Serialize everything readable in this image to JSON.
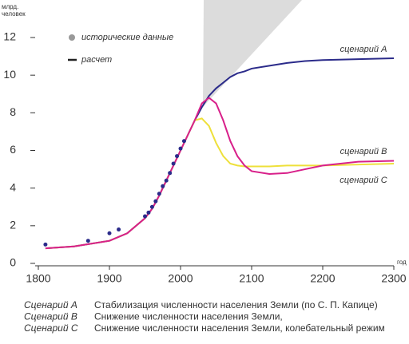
{
  "chart_data": {
    "type": "line",
    "ylabel": [
      "млрд.",
      "человек"
    ],
    "xlabel": "год",
    "xlim": [
      1800,
      2300
    ],
    "ylim": [
      0,
      12
    ],
    "xticks": [
      1800,
      1900,
      2000,
      2100,
      2200,
      2300
    ],
    "yticks": [
      0,
      2,
      4,
      6,
      8,
      10,
      12
    ],
    "points": {
      "name": "исторические данные",
      "color": "#2b2b8a",
      "x": [
        1810,
        1870,
        1900,
        1913,
        1950,
        1955,
        1960,
        1965,
        1970,
        1975,
        1980,
        1985,
        1990,
        1995,
        2000,
        2005
      ],
      "values": [
        1.0,
        1.2,
        1.6,
        1.8,
        2.5,
        2.7,
        3.0,
        3.3,
        3.7,
        4.1,
        4.4,
        4.8,
        5.3,
        5.7,
        6.1,
        6.5
      ]
    },
    "calc_label": "расчет",
    "x": [
      1810,
      1850,
      1900,
      1925,
      1950,
      1960,
      1970,
      1980,
      1990,
      2000,
      2010,
      2020,
      2030,
      2040,
      2050,
      2060,
      2070,
      2080,
      2090,
      2100,
      2125,
      2150,
      2175,
      2200,
      2250,
      2300
    ],
    "series": [
      {
        "name": "Сценарий A",
        "label": "сценарий A",
        "description": "Стабилизация численности населения Земли (по С. П. Капице)",
        "color": "#2b2b8a",
        "values": [
          0.8,
          0.9,
          1.2,
          1.6,
          2.4,
          2.9,
          3.6,
          4.4,
          5.2,
          6.0,
          6.8,
          7.6,
          8.3,
          8.9,
          9.3,
          9.6,
          9.9,
          10.1,
          10.2,
          10.35,
          10.5,
          10.65,
          10.75,
          10.8,
          10.85,
          10.9
        ]
      },
      {
        "name": "Сценарий B",
        "label": "сценарий B",
        "description": "Снижение численности населения Земли,",
        "color": "#eee03a",
        "values": [
          0.8,
          0.9,
          1.2,
          1.6,
          2.4,
          2.9,
          3.6,
          4.4,
          5.2,
          6.0,
          6.8,
          7.6,
          7.7,
          7.3,
          6.4,
          5.7,
          5.3,
          5.2,
          5.15,
          5.15,
          5.15,
          5.2,
          5.2,
          5.2,
          5.25,
          5.3
        ]
      },
      {
        "name": "Сценарий C",
        "label": "сценарий C",
        "description": "Снижение численности населения Земли, колебательный режим",
        "color": "#d8208a",
        "values": [
          0.8,
          0.9,
          1.2,
          1.6,
          2.4,
          2.9,
          3.6,
          4.4,
          5.2,
          6.0,
          6.8,
          7.6,
          8.5,
          8.8,
          8.5,
          7.6,
          6.5,
          5.7,
          5.2,
          4.9,
          4.75,
          4.8,
          5.0,
          5.2,
          5.4,
          5.45
        ]
      }
    ]
  }
}
